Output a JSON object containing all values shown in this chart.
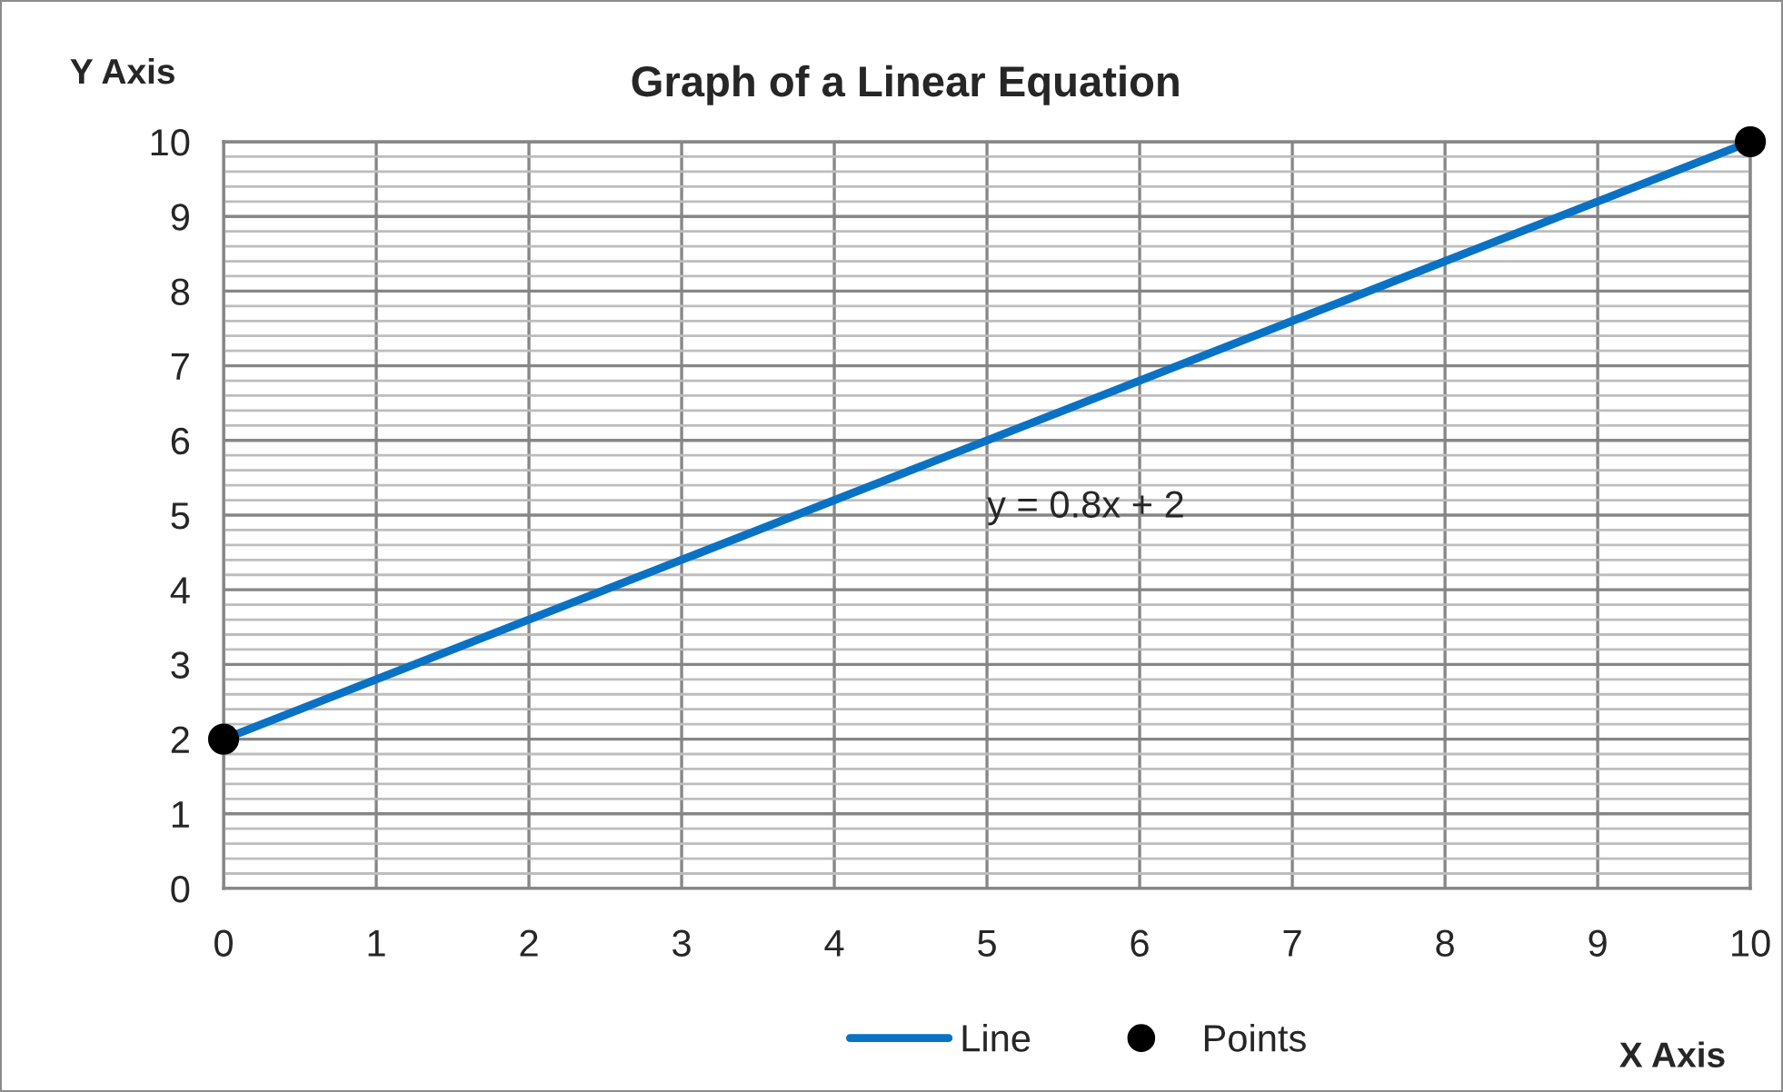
{
  "chart_data": {
    "type": "line",
    "title": "Graph of a Linear Equation",
    "xlabel": "X Axis",
    "ylabel": "Y Axis",
    "x": [
      0,
      10
    ],
    "series": [
      {
        "name": "Line",
        "color": "#0a72c4",
        "values": [
          2,
          10
        ],
        "marker": "none",
        "line_style": "solid"
      },
      {
        "name": "Points",
        "type": "scatter",
        "color": "#000000",
        "values": [
          2,
          10
        ],
        "marker": "circle"
      }
    ],
    "xlim": [
      0,
      10
    ],
    "xticks": [
      0,
      1,
      2,
      3,
      4,
      5,
      6,
      7,
      8,
      9,
      10
    ],
    "ylim": [
      0,
      10
    ],
    "yticks": [
      0,
      {
        "value": 0.2,
        "label": null
      },
      {
        "value": 0.4,
        "label": null
      },
      {
        "value": 0.6,
        "label": null
      },
      {
        "value": 0.8,
        "label": null
      },
      1,
      {
        "value": 1.2,
        "label": null
      },
      {
        "value": 1.4,
        "label": null
      },
      {
        "value": 1.6,
        "label": null
      },
      {
        "value": 1.8,
        "label": null
      },
      2,
      {
        "value": 2.2,
        "label": null
      },
      {
        "value": 2.4,
        "label": null
      },
      {
        "value": 2.6,
        "label": null
      },
      {
        "value": 2.8,
        "label": null
      },
      3,
      {
        "value": 3.2,
        "label": null
      },
      {
        "value": 3.4,
        "label": null
      },
      {
        "value": 3.6,
        "label": null
      },
      {
        "value": 3.8,
        "label": null
      },
      4,
      {
        "value": 4.2,
        "label": null
      },
      {
        "value": 4.4,
        "label": null
      },
      {
        "value": 4.6,
        "label": null
      },
      {
        "value": 4.8,
        "label": null
      },
      5,
      {
        "value": 5.2,
        "label": null
      },
      {
        "value": 5.4,
        "label": null
      },
      {
        "value": 5.6,
        "label": null
      },
      {
        "value": 5.8,
        "label": null
      },
      6,
      {
        "value": 6.2,
        "label": null
      },
      {
        "value": 6.4,
        "label": null
      },
      {
        "value": 6.6,
        "label": null
      },
      {
        "value": 6.8,
        "label": null
      },
      7,
      {
        "value": 7.2,
        "label": null
      },
      {
        "value": 7.4,
        "label": null
      },
      {
        "value": 7.6,
        "label": null
      },
      {
        "value": 7.8,
        "label": null
      },
      8,
      {
        "value": 8.2,
        "label": null
      },
      {
        "value": 8.4,
        "label": null
      },
      {
        "value": 8.6,
        "label": null
      },
      {
        "value": 8.8,
        "label": null
      },
      9,
      {
        "value": 9.2,
        "label": null
      },
      {
        "value": 9.4,
        "label": null
      },
      {
        "value": 9.6,
        "label": null
      },
      {
        "value": 9.8,
        "label": null
      },
      10
    ],
    "grid": true,
    "legend": "bottom",
    "annotations": [
      "y = 0.8x + 2"
    ]
  }
}
